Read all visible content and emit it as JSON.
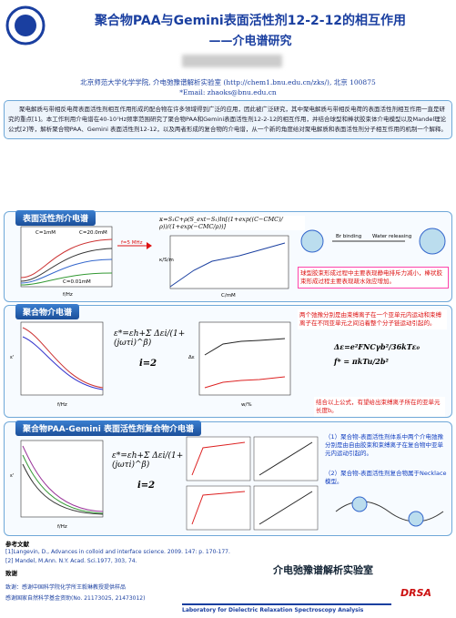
{
  "header": {
    "title": "聚合物PAA与Gemini表面活性剂12-2-12的相互作用",
    "subtitle": "——介电谱研究",
    "affiliation": "北京师范大学化学学院, 介电弛豫谱解析实验室 (http://chem1.bnu.edu.cn/zks/), 北京 100875",
    "email": "*Email: zhaoks@bnu.edu.cn"
  },
  "abstract": "聚电解质与带相反电荷表面活性剂相互作用形成的配合物在许多领域得到广泛的应用，因此被广泛研究，其中聚电解质与带相反电荷的表面活性剂相互作用一直是研究的重点[1]。本工作利用介电谱在40-10⁷Hz频率范围研究了聚合物PAA和Gemini表面活性剂12-2-12的相互作用，并结合球型和棒状胶束体介电模型以及Mandel理论公式[2]等，解析聚合物PAA、Gemini 表面活性剂12-12，以及两者形成的复合物的介电谱，从一个新的角度给对聚电解质和表面活性剂分子相互作用的机制一个解释。",
  "sections": [
    {
      "title": "表面活性剂介电谱",
      "formula": "κ=S₁C+ρ(S_ext−S₁)ln[(1+exp((C−CMC)/ρ))/(1+exp(−CMC/ρ))]",
      "labels": [
        "C=1mM",
        "C=20.0mM",
        "C=0.01mM",
        "f=5 MHz",
        "f/Hz",
        "C/mM",
        "κ/S/m",
        "Br binding",
        "Water releasing"
      ],
      "note": "球型胶束形成过程中主要表现静电排斥力减小，棒状胶束形成过程主要表现疏水效应增加。"
    },
    {
      "title": "聚合物介电谱",
      "formula": "ε*=εh+Σ Δεi/(1+(jωτi)^β)",
      "index": "i=2",
      "labels": [
        "f/Hz",
        "ε'",
        "w/%",
        "Δε"
      ],
      "note1": "两个弛豫分别是由束缚离子在一个亚单元内运动和束缚离子在不同亚单元之间沿着整个分子链运动引起的。",
      "formula2": "Δε=e²FNCγb²/36kTε₀",
      "formula3": "f* = πkTu/2b²",
      "note2": "结合以上公式，有望给出束缚离子所在的亚单元长度b。"
    },
    {
      "title": "聚合物PAA-Gemini 表面活性剂复合物介电谱",
      "formula": "ε*=εh+Σ Δεi/(1+(jωτi)^β)",
      "index": "i=2",
      "labels": [
        "f/Hz",
        "ε'"
      ],
      "conclusions": [
        "（1）聚合物-表面活性剂体系中两个介电弛豫分别是由自由胶束和束缚离子在复合物中亚单元内运动引起的。",
        "（2）聚合物-表面活性剂复合物属于Necklace 模型。"
      ]
    }
  ],
  "references": {
    "title": "参考文献",
    "items": [
      "[1]Langevin, D., Advances in colloid and interface science. 2009. 147: p. 170-177.",
      "[2] Mandel, M.Ann. N.Y. Acad. Sci.1977, 303, 74."
    ],
    "ack_title": "致谢",
    "ack": [
      "致谢：感谢中国科学院化学所王毅琳教授提供样品",
      "感谢国家自然科学基金资助(No. 21173025, 21473012)"
    ]
  },
  "footer": {
    "lab": "介电弛豫谱解析实验室",
    "lab_en": "Laboratory for Dielectric Relaxation Spectroscopy Analysis",
    "logo": "DRSA"
  }
}
